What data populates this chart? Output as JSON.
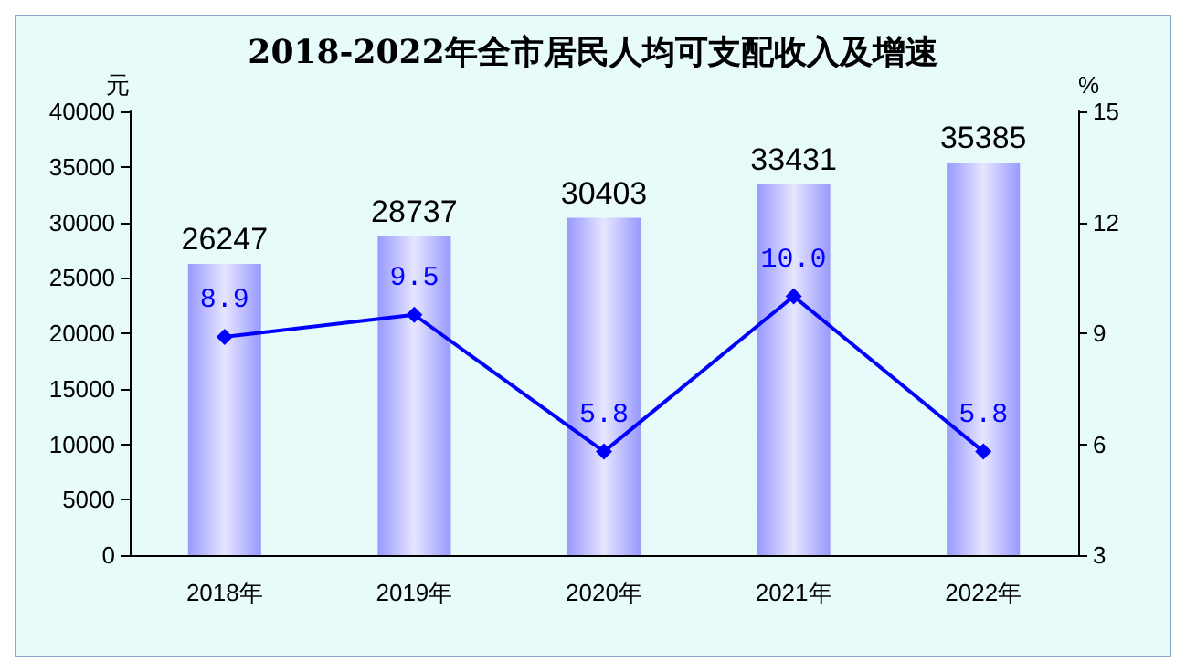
{
  "chart_data": {
    "type": "bar",
    "title": "2018-2022年全市居民人均可支配收入及增速",
    "categories": [
      "2018年",
      "2019年",
      "2020年",
      "2021年",
      "2022年"
    ],
    "ylabel": "元",
    "y2label": "%",
    "series": [
      {
        "color": "#9999ff",
        "values": [
          26247,
          28737,
          30403,
          33431,
          35385
        ]
      },
      {
        "type": "line",
        "axis": "y2",
        "color": "#0000ff",
        "values": [
          8.9,
          9.5,
          5.8,
          10.0,
          5.8
        ],
        "value_labels": [
          "8.9",
          "9.5",
          "5.8",
          "10.0",
          "5.8"
        ]
      }
    ],
    "ylim": [
      0,
      40000
    ],
    "yticks": [
      0,
      5000,
      10000,
      15000,
      20000,
      25000,
      30000,
      35000,
      40000
    ],
    "y2lim": [
      3,
      15
    ],
    "y2ticks": [
      3,
      6,
      9,
      12,
      15
    ],
    "data_labels": true,
    "marker": "diamond",
    "grid": false
  }
}
